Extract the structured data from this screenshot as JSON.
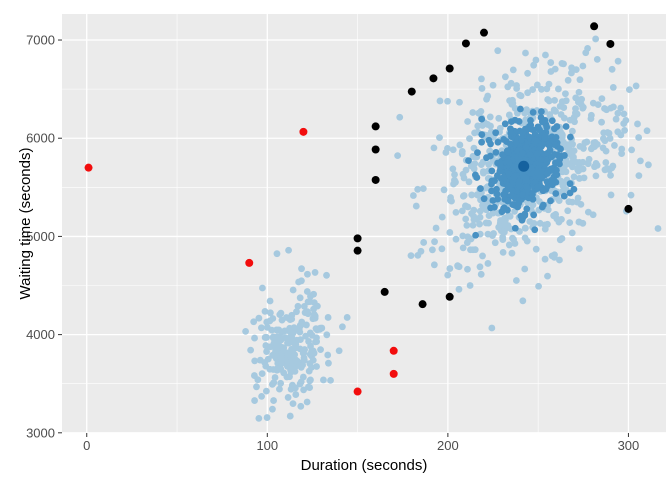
{
  "chart_data": {
    "type": "scatter",
    "title": "",
    "xlabel": "Duration (seconds)",
    "ylabel": "Waiting time (seconds)",
    "xlim": [
      -13.7,
      320.8
    ],
    "ylim": [
      2998,
      7265
    ],
    "x_major_ticks": [
      0,
      100,
      200,
      300
    ],
    "x_minor_ticks": [
      50,
      150,
      250
    ],
    "y_major_ticks": [
      3000,
      4000,
      5000,
      6000,
      7000
    ],
    "y_minor_ticks": [
      3500,
      4500,
      5500,
      6500
    ],
    "grid": "on",
    "legend": "none",
    "panel_background": "#EBEBEB",
    "grid_color": "#FFFFFF",
    "colors": {
      "light_blue": "#A6C9DF",
      "core_blue": "#4891C3",
      "center_blue": "#15629F",
      "red": "#F20D0D",
      "black": "#000000",
      "tick_text": "#4D4D4D",
      "tick_mark": "#333333"
    },
    "point_radius": {
      "cluster": 3.4,
      "highlight": 4,
      "center": 5.5
    },
    "clusters": [
      {
        "name": "main-cluster-halo",
        "role": "light_blue",
        "n": 620,
        "mean": [
          243,
          5720
        ],
        "sd": [
          28,
          500
        ],
        "rho": 0.35,
        "seed": 42
      },
      {
        "name": "small-cluster",
        "role": "light_blue",
        "n": 230,
        "mean": [
          114,
          3880
        ],
        "sd": [
          10,
          320
        ],
        "rho": 0.25,
        "seed": 7
      },
      {
        "name": "main-cluster-core",
        "role": "core_blue",
        "n": 480,
        "mean": [
          242,
          5715
        ],
        "sd": [
          10,
          225
        ],
        "rho": 0.2,
        "seed": 13
      }
    ],
    "black_ring_points": [
      [
        150,
        4855
      ],
      [
        150,
        4980
      ],
      [
        160,
        5575
      ],
      [
        160,
        5885
      ],
      [
        160,
        6120
      ],
      [
        165,
        4435
      ],
      [
        180,
        6475
      ],
      [
        186,
        4310
      ],
      [
        192,
        6610
      ],
      [
        201,
        4385
      ],
      [
        201,
        6710
      ],
      [
        210,
        6965
      ],
      [
        220,
        7075
      ],
      [
        281,
        7140
      ],
      [
        290,
        6960
      ],
      [
        300,
        5280
      ]
    ],
    "red_outlier_points": [
      [
        1,
        5700
      ],
      [
        90,
        4730
      ],
      [
        120,
        6065
      ],
      [
        150,
        3420
      ],
      [
        170,
        3600
      ],
      [
        170,
        3835
      ]
    ],
    "center_point": [
      242,
      5715
    ]
  }
}
